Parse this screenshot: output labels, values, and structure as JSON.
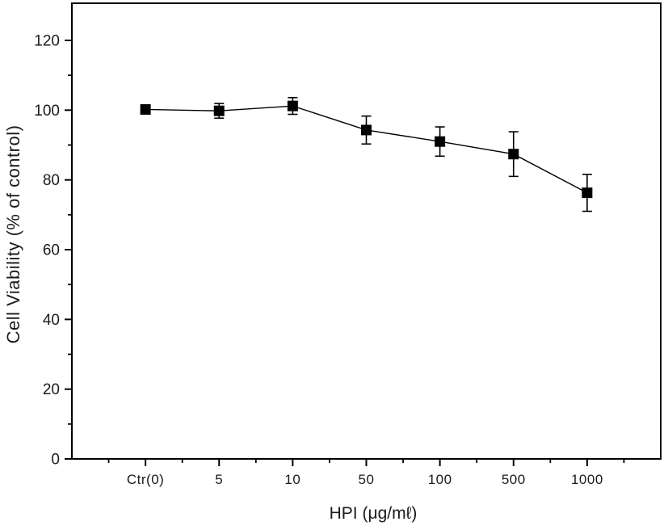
{
  "chart_data": {
    "type": "line",
    "title": "",
    "xlabel": "HPI (μg/mℓ)",
    "ylabel": "Cell Viability (% of control)",
    "categories": [
      "Ctr(0)",
      "5",
      "10",
      "50",
      "100",
      "500",
      "1000"
    ],
    "series": [
      {
        "name": "cell-viability",
        "values": [
          100.2,
          99.8,
          101.2,
          94.3,
          91.0,
          87.4,
          76.3
        ],
        "errors": [
          0.5,
          2.1,
          2.4,
          4.0,
          4.2,
          6.4,
          5.3
        ],
        "marker": "filled-square",
        "color": "#000000"
      }
    ],
    "ylim": [
      0,
      130
    ],
    "yticks_major": [
      0,
      20,
      40,
      60,
      80,
      100,
      120
    ],
    "ytick_minor_step": 10,
    "xtick_minor": "midpoints",
    "grid": false,
    "legend": "none",
    "frame": "box",
    "background_color": "#ffffff",
    "axis_color": "#000000"
  }
}
